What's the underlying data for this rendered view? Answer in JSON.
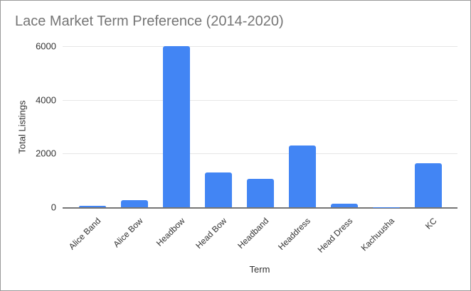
{
  "chart_data": {
    "type": "bar",
    "title": "Lace Market Term Preference (2014-2020)",
    "xlabel": "Term",
    "ylabel": "Total Listings",
    "categories": [
      "Alice Band",
      "Alice Bow",
      "Headbow",
      "Head Bow",
      "Headband",
      "Headdress",
      "Head Dress",
      "Kachuusha",
      "KC"
    ],
    "values": [
      50,
      270,
      6000,
      1300,
      1070,
      2310,
      120,
      10,
      1650
    ],
    "ylim": [
      0,
      6000
    ],
    "yticks": [
      0,
      2000,
      4000,
      6000
    ],
    "grid": "horizontal",
    "legend_position": "none",
    "bar_color": "#4285f4"
  },
  "colors": {
    "background": "#ffffff",
    "border": "#9a9a9a",
    "title_text": "#757575",
    "tick_text": "#333333",
    "gridline": "#e6e6e6",
    "axis_line": "#757575",
    "bar": "#4285f4"
  }
}
